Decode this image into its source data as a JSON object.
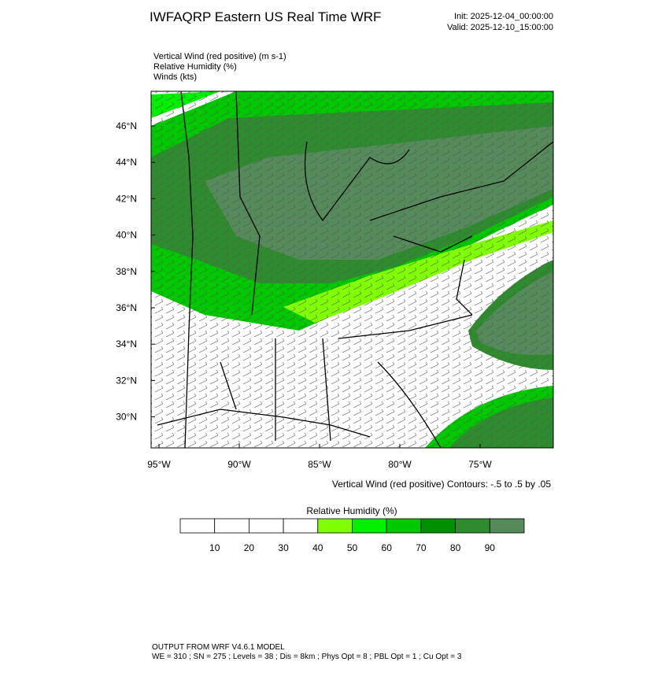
{
  "header": {
    "title": "IWFAQRP Eastern US Real Time WRF",
    "init": "Init: 2025-12-04_00:00:00",
    "valid": "Valid: 2025-12-10_15:00:00"
  },
  "fields": [
    "Vertical Wind (red positive)   (m s-1)",
    "Relative Humidity   (%)",
    "Winds   (kts)"
  ],
  "map": {
    "lat_labels": [
      "46°N",
      "44°N",
      "42°N",
      "40°N",
      "38°N",
      "36°N",
      "34°N",
      "32°N",
      "30°N"
    ],
    "lon_labels": [
      "95°W",
      "90°W",
      "85°W",
      "80°W",
      "75°W"
    ],
    "contour_note": "Vertical Wind (red positive) Contours: -.5 to .5 by .05"
  },
  "colorbar": {
    "title": "Relative Humidity  (%)",
    "labels": [
      10,
      20,
      30,
      40,
      50,
      60,
      70,
      80,
      90
    ],
    "colors": [
      "#ffffff",
      "#ffffff",
      "#ffffff",
      "#ffffff",
      "#80ff00",
      "#00f000",
      "#00c800",
      "#009000",
      "#2e8b2e",
      "#558a5a"
    ]
  },
  "footer": [
    "OUTPUT FROM WRF V4.6.1 MODEL",
    "WE = 310 ; SN = 275 ; Levels = 38 ; Dis = 8km ; Phys Opt = 8 ; PBL Opt = 1 ; Cu Opt = 3"
  ]
}
